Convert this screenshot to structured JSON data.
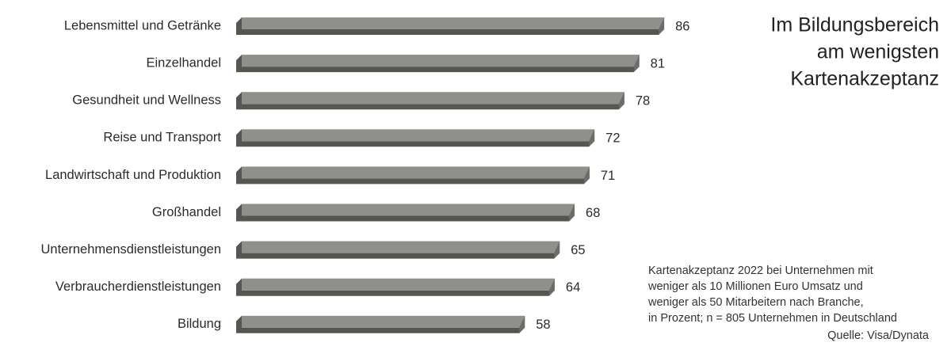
{
  "chart_data": {
    "type": "bar",
    "orientation": "horizontal",
    "title": [
      "Im Bildungsbereich",
      "am wenigsten",
      "Kartenakzeptanz"
    ],
    "categories": [
      "Lebensmittel und Getränke",
      "Einzelhandel",
      "Gesundheit und Wellness",
      "Reise und Transport",
      "Landwirtschaft und Produktion",
      "Großhandel",
      "Unternehmensdienstleistungen",
      "Verbraucherdienstleistungen",
      "Bildung"
    ],
    "values": [
      86,
      81,
      78,
      72,
      71,
      68,
      65,
      64,
      58
    ],
    "color": "#8f908b",
    "note": [
      "Kartenakzeptanz 2022 bei Unternehmen mit",
      "weniger als 10 Millionen Euro Umsatz und",
      "weniger als 50 Mitarbeitern nach Branche,",
      "in Prozent; n = 805 Unternehmen in Deutschland"
    ],
    "source": "Quelle: Visa/Dynata"
  }
}
